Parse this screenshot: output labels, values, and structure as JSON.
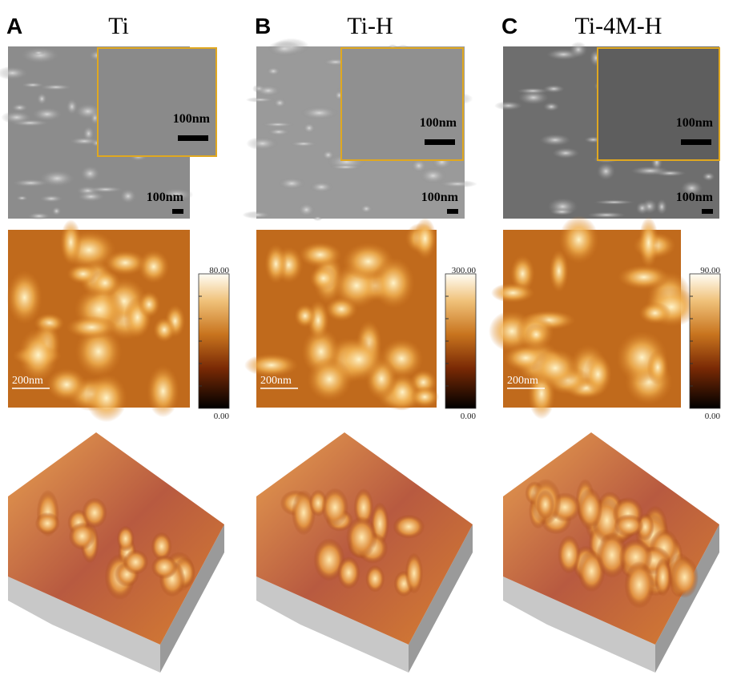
{
  "panels": [
    {
      "letter": "A",
      "title": "Ti",
      "sem_scale": "100nm",
      "inset_scale": "100nm",
      "afm_scale": "200nm",
      "colorbar_max": "80.00",
      "colorbar_min": "0.00"
    },
    {
      "letter": "B",
      "title": "Ti-H",
      "sem_scale": "100nm",
      "inset_scale": "100nm",
      "afm_scale": "200nm",
      "colorbar_max": "300.00",
      "colorbar_min": "0.00"
    },
    {
      "letter": "C",
      "title": "Ti-4M-H",
      "sem_scale": "100nm",
      "inset_scale": "100nm",
      "afm_scale": "200nm",
      "colorbar_max": "90.00",
      "colorbar_min": "0.00"
    }
  ]
}
